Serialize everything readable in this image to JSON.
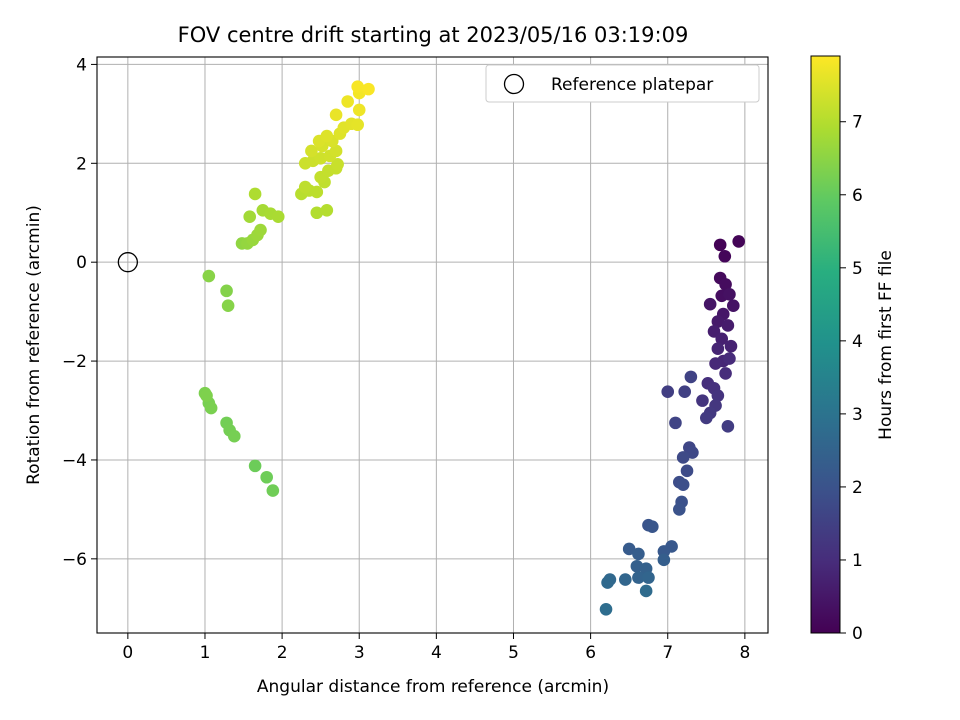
{
  "chart_data": {
    "type": "scatter",
    "title": "FOV centre drift starting at 2023/05/16 03:19:09",
    "xlabel": "Angular distance from reference (arcmin)",
    "ylabel": "Rotation from reference (arcmin)",
    "xlim": [
      -0.4,
      8.3
    ],
    "ylim": [
      -7.5,
      4.15
    ],
    "xticks": [
      "0",
      "1",
      "2",
      "3",
      "4",
      "5",
      "6",
      "7",
      "8"
    ],
    "yticks": [
      "−6",
      "−4",
      "−2",
      "0",
      "2",
      "4"
    ],
    "grid": true,
    "legend": {
      "placement": "top-right",
      "entries": [
        "Reference platepar"
      ]
    },
    "reference": {
      "x": 0,
      "y": 0,
      "label": "Reference platepar"
    },
    "colorbar": {
      "label": "Hours from first FF file",
      "range": [
        0,
        7.9
      ],
      "ticks": [
        "0",
        "1",
        "2",
        "3",
        "4",
        "5",
        "6",
        "7"
      ],
      "colormap": "viridis"
    },
    "points": [
      [
        7.68,
        0.35,
        0.05
      ],
      [
        7.92,
        0.42,
        0.08
      ],
      [
        7.74,
        0.12,
        0.12
      ],
      [
        7.68,
        -0.32,
        0.2
      ],
      [
        7.75,
        -0.45,
        0.25
      ],
      [
        7.7,
        -0.68,
        0.3
      ],
      [
        7.8,
        -0.65,
        0.35
      ],
      [
        7.85,
        -0.88,
        0.4
      ],
      [
        7.55,
        -0.85,
        0.45
      ],
      [
        7.72,
        -1.05,
        0.5
      ],
      [
        7.65,
        -1.2,
        0.55
      ],
      [
        7.78,
        -1.28,
        0.6
      ],
      [
        7.6,
        -1.4,
        0.65
      ],
      [
        7.7,
        -1.55,
        0.7
      ],
      [
        7.82,
        -1.7,
        0.75
      ],
      [
        7.65,
        -1.75,
        0.8
      ],
      [
        7.72,
        -2.0,
        0.85
      ],
      [
        7.62,
        -2.05,
        0.9
      ],
      [
        7.8,
        -1.95,
        0.95
      ],
      [
        7.75,
        -2.25,
        1.0
      ],
      [
        7.52,
        -2.45,
        1.05
      ],
      [
        7.6,
        -2.55,
        1.1
      ],
      [
        7.65,
        -2.7,
        1.15
      ],
      [
        7.45,
        -2.8,
        1.2
      ],
      [
        7.62,
        -2.9,
        1.25
      ],
      [
        7.55,
        -3.05,
        1.3
      ],
      [
        7.5,
        -3.15,
        1.35
      ],
      [
        7.78,
        -3.32,
        1.4
      ],
      [
        7.0,
        -2.62,
        1.45
      ],
      [
        7.22,
        -2.62,
        1.5
      ],
      [
        7.3,
        -2.32,
        1.55
      ],
      [
        7.1,
        -3.25,
        1.6
      ],
      [
        7.28,
        -3.75,
        1.65
      ],
      [
        7.32,
        -3.85,
        1.7
      ],
      [
        7.2,
        -3.95,
        1.75
      ],
      [
        7.25,
        -4.22,
        1.8
      ],
      [
        7.15,
        -4.45,
        1.85
      ],
      [
        7.2,
        -4.5,
        1.9
      ],
      [
        7.18,
        -4.85,
        1.95
      ],
      [
        7.15,
        -5.0,
        2.0
      ],
      [
        6.75,
        -5.32,
        2.05
      ],
      [
        6.8,
        -5.35,
        2.1
      ],
      [
        7.05,
        -5.75,
        2.15
      ],
      [
        6.95,
        -5.85,
        2.2
      ],
      [
        6.5,
        -5.8,
        2.25
      ],
      [
        6.62,
        -5.9,
        2.3
      ],
      [
        6.95,
        -6.02,
        2.35
      ],
      [
        6.6,
        -6.15,
        2.4
      ],
      [
        6.72,
        -6.2,
        2.45
      ],
      [
        6.62,
        -6.38,
        2.5
      ],
      [
        6.75,
        -6.38,
        2.55
      ],
      [
        6.45,
        -6.42,
        2.6
      ],
      [
        6.25,
        -6.42,
        2.65
      ],
      [
        6.22,
        -6.48,
        2.7
      ],
      [
        6.72,
        -6.65,
        2.75
      ],
      [
        6.2,
        -7.02,
        2.8
      ],
      [
        1.65,
        -4.12,
        6.1
      ],
      [
        1.8,
        -4.35,
        6.12
      ],
      [
        1.88,
        -4.62,
        6.15
      ],
      [
        1.28,
        -3.25,
        6.18
      ],
      [
        1.32,
        -3.4,
        6.2
      ],
      [
        1.38,
        -3.52,
        6.22
      ],
      [
        1.05,
        -2.85,
        6.25
      ],
      [
        1.08,
        -2.95,
        6.28
      ],
      [
        1.0,
        -2.65,
        6.3
      ],
      [
        1.02,
        -2.7,
        6.33
      ],
      [
        1.28,
        -0.58,
        6.4
      ],
      [
        1.3,
        -0.88,
        6.42
      ],
      [
        1.05,
        -0.28,
        6.45
      ],
      [
        1.48,
        0.38,
        6.55
      ],
      [
        1.55,
        0.38,
        6.6
      ],
      [
        1.62,
        0.45,
        6.65
      ],
      [
        1.68,
        0.55,
        6.7
      ],
      [
        1.72,
        0.65,
        6.72
      ],
      [
        1.58,
        0.92,
        6.78
      ],
      [
        1.75,
        1.05,
        6.82
      ],
      [
        1.85,
        0.98,
        6.85
      ],
      [
        1.95,
        0.92,
        6.88
      ],
      [
        1.65,
        1.38,
        6.92
      ],
      [
        2.45,
        1.0,
        6.98
      ],
      [
        2.58,
        1.05,
        7.0
      ],
      [
        2.25,
        1.38,
        7.05
      ],
      [
        2.35,
        1.45,
        7.08
      ],
      [
        2.45,
        1.42,
        7.1
      ],
      [
        2.3,
        1.52,
        7.12
      ],
      [
        2.55,
        1.62,
        7.15
      ],
      [
        2.5,
        1.72,
        7.18
      ],
      [
        2.6,
        1.85,
        7.2
      ],
      [
        2.7,
        1.9,
        7.22
      ],
      [
        2.72,
        1.98,
        7.25
      ],
      [
        2.3,
        2.0,
        7.28
      ],
      [
        2.4,
        2.05,
        7.3
      ],
      [
        2.5,
        2.1,
        7.32
      ],
      [
        2.62,
        2.15,
        7.35
      ],
      [
        2.7,
        2.25,
        7.38
      ],
      [
        2.38,
        2.25,
        7.4
      ],
      [
        2.52,
        2.35,
        7.42
      ],
      [
        2.65,
        2.45,
        7.45
      ],
      [
        2.48,
        2.45,
        7.48
      ],
      [
        2.58,
        2.55,
        7.5
      ],
      [
        2.75,
        2.6,
        7.52
      ],
      [
        2.8,
        2.72,
        7.55
      ],
      [
        2.9,
        2.8,
        7.58
      ],
      [
        2.98,
        2.78,
        7.6
      ],
      [
        2.7,
        2.98,
        7.65
      ],
      [
        2.85,
        3.25,
        7.7
      ],
      [
        3.0,
        3.08,
        7.72
      ],
      [
        3.0,
        3.42,
        7.78
      ],
      [
        2.98,
        3.55,
        7.82
      ],
      [
        3.12,
        3.5,
        7.85
      ]
    ]
  }
}
